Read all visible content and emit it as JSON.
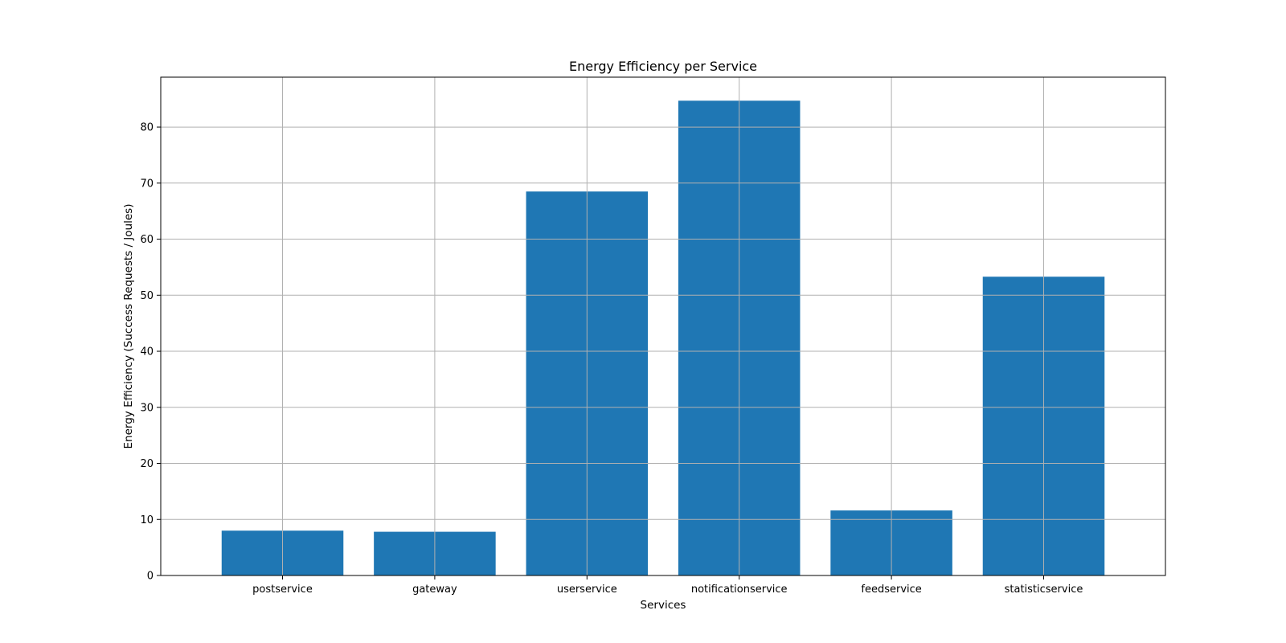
{
  "chart_data": {
    "type": "bar",
    "title": "Energy Efficiency per Service",
    "xlabel": "Services",
    "ylabel": "Energy Efficiency (Success Requests / Joules)",
    "categories": [
      "postservice",
      "gateway",
      "userservice",
      "notificationservice",
      "feedservice",
      "statisticservice"
    ],
    "values": [
      8.0,
      7.8,
      68.5,
      84.7,
      11.6,
      53.3
    ],
    "ylim": [
      0,
      88.9
    ],
    "yticks": [
      0,
      10,
      20,
      30,
      40,
      50,
      60,
      70,
      80
    ],
    "grid": true,
    "legend": "none",
    "bar_color": "#1f77b4",
    "grid_color": "#b0b0b0"
  }
}
